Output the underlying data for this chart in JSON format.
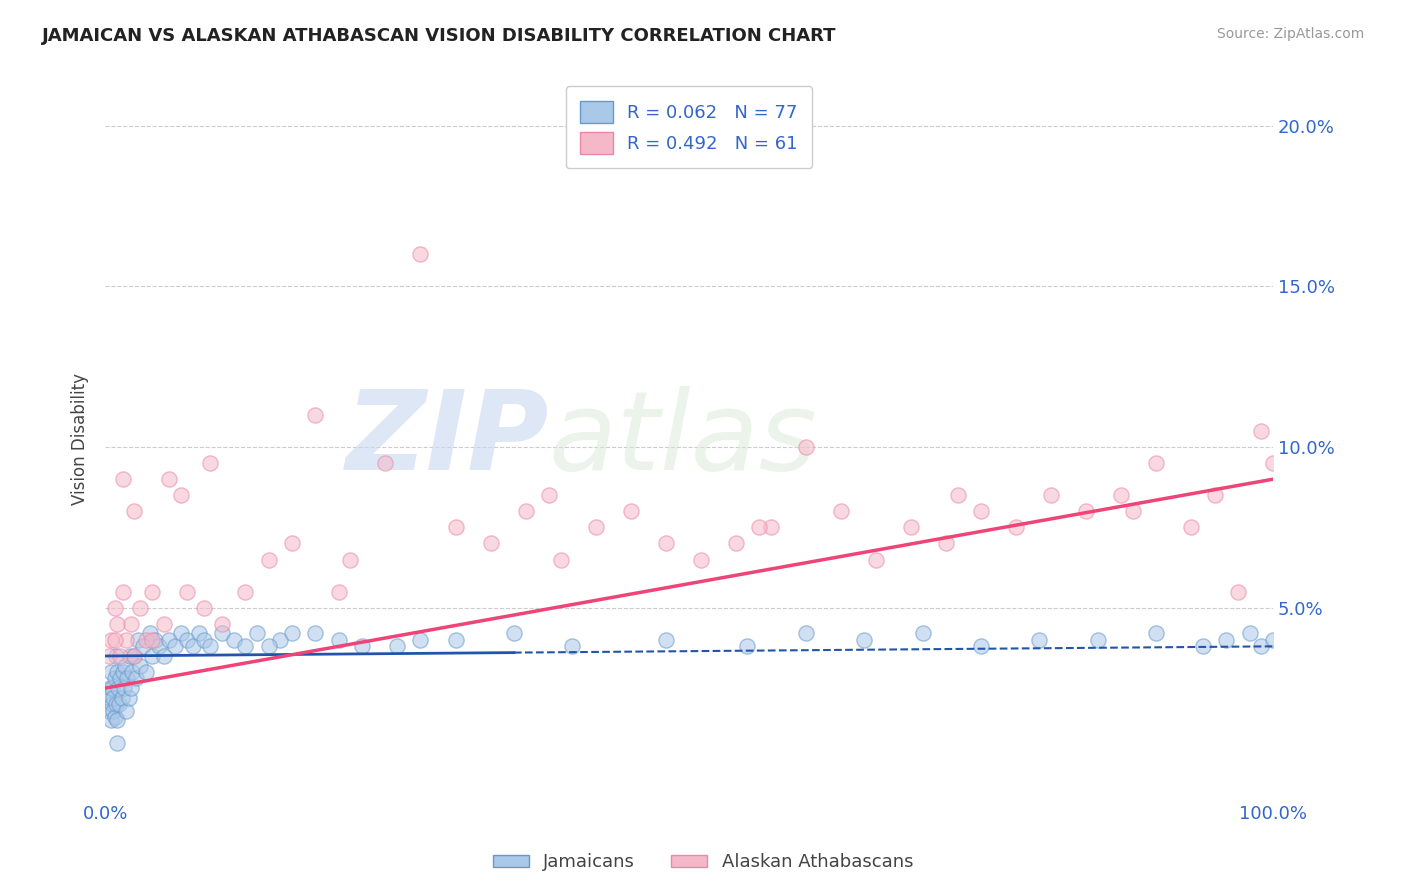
{
  "title": "JAMAICAN VS ALASKAN ATHABASCAN VISION DISABILITY CORRELATION CHART",
  "source_text": "Source: ZipAtlas.com",
  "ylabel": "Vision Disability",
  "xlim": [
    0,
    1.0
  ],
  "ylim": [
    -0.01,
    0.215
  ],
  "ytick_values": [
    0.05,
    0.1,
    0.15,
    0.2
  ],
  "ytick_labels": [
    "5.0%",
    "10.0%",
    "15.0%",
    "20.0%"
  ],
  "legend_r1": "R = 0.062",
  "legend_n1": "N = 77",
  "legend_r2": "R = 0.492",
  "legend_n2": "N = 61",
  "color_jamaican_fill": "#aac8e8",
  "color_jamaican_edge": "#6699cc",
  "color_jamaican_line": "#2255aa",
  "color_athabascan_fill": "#f5b8c8",
  "color_athabascan_edge": "#e888aa",
  "color_athabascan_line": "#ee4477",
  "color_axis_label": "#3366cc",
  "color_title": "#222222",
  "background": "#ffffff",
  "watermark_zip": "ZIP",
  "watermark_atlas": "atlas",
  "series1_label": "Jamaicans",
  "series2_label": "Alaskan Athabascans",
  "jamaican_x": [
    0.002,
    0.003,
    0.004,
    0.005,
    0.005,
    0.006,
    0.006,
    0.007,
    0.007,
    0.008,
    0.008,
    0.009,
    0.009,
    0.01,
    0.01,
    0.011,
    0.012,
    0.013,
    0.014,
    0.015,
    0.016,
    0.017,
    0.018,
    0.019,
    0.02,
    0.021,
    0.022,
    0.023,
    0.025,
    0.026,
    0.028,
    0.03,
    0.032,
    0.035,
    0.038,
    0.04,
    0.043,
    0.046,
    0.05,
    0.055,
    0.06,
    0.065,
    0.07,
    0.075,
    0.08,
    0.085,
    0.09,
    0.1,
    0.11,
    0.12,
    0.13,
    0.15,
    0.18,
    0.22,
    0.27,
    0.35,
    0.4,
    0.48,
    0.55,
    0.6,
    0.65,
    0.7,
    0.75,
    0.8,
    0.85,
    0.9,
    0.94,
    0.96,
    0.98,
    0.99,
    1.0,
    0.14,
    0.16,
    0.2,
    0.25,
    0.3,
    0.01
  ],
  "jamaican_y": [
    0.022,
    0.018,
    0.025,
    0.015,
    0.03,
    0.02,
    0.025,
    0.018,
    0.022,
    0.016,
    0.028,
    0.02,
    0.035,
    0.015,
    0.03,
    0.025,
    0.02,
    0.028,
    0.022,
    0.03,
    0.025,
    0.032,
    0.018,
    0.028,
    0.022,
    0.035,
    0.025,
    0.03,
    0.035,
    0.028,
    0.04,
    0.032,
    0.038,
    0.03,
    0.042,
    0.035,
    0.04,
    0.038,
    0.035,
    0.04,
    0.038,
    0.042,
    0.04,
    0.038,
    0.042,
    0.04,
    0.038,
    0.042,
    0.04,
    0.038,
    0.042,
    0.04,
    0.042,
    0.038,
    0.04,
    0.042,
    0.038,
    0.04,
    0.038,
    0.042,
    0.04,
    0.042,
    0.038,
    0.04,
    0.04,
    0.042,
    0.038,
    0.04,
    0.042,
    0.038,
    0.04,
    0.038,
    0.042,
    0.04,
    0.038,
    0.04,
    0.008
  ],
  "athabascan_x": [
    0.003,
    0.005,
    0.008,
    0.01,
    0.013,
    0.015,
    0.018,
    0.022,
    0.025,
    0.03,
    0.035,
    0.04,
    0.05,
    0.055,
    0.065,
    0.07,
    0.085,
    0.09,
    0.1,
    0.12,
    0.14,
    0.16,
    0.18,
    0.21,
    0.24,
    0.27,
    0.3,
    0.33,
    0.36,
    0.39,
    0.42,
    0.45,
    0.48,
    0.51,
    0.54,
    0.57,
    0.6,
    0.63,
    0.66,
    0.69,
    0.72,
    0.75,
    0.78,
    0.81,
    0.84,
    0.87,
    0.9,
    0.93,
    0.95,
    0.97,
    0.99,
    1.0,
    0.2,
    0.38,
    0.56,
    0.73,
    0.88,
    0.008,
    0.015,
    0.025,
    0.04
  ],
  "athabascan_y": [
    0.035,
    0.04,
    0.05,
    0.045,
    0.035,
    0.055,
    0.04,
    0.045,
    0.035,
    0.05,
    0.04,
    0.055,
    0.045,
    0.09,
    0.085,
    0.055,
    0.05,
    0.095,
    0.045,
    0.055,
    0.065,
    0.07,
    0.11,
    0.065,
    0.095,
    0.16,
    0.075,
    0.07,
    0.08,
    0.065,
    0.075,
    0.08,
    0.07,
    0.065,
    0.07,
    0.075,
    0.1,
    0.08,
    0.065,
    0.075,
    0.07,
    0.08,
    0.075,
    0.085,
    0.08,
    0.085,
    0.095,
    0.075,
    0.085,
    0.055,
    0.105,
    0.095,
    0.055,
    0.085,
    0.075,
    0.085,
    0.08,
    0.04,
    0.09,
    0.08,
    0.04
  ],
  "jamaican_trendline": [
    0.035,
    0.038
  ],
  "athabascan_trendline": [
    0.025,
    0.09
  ]
}
